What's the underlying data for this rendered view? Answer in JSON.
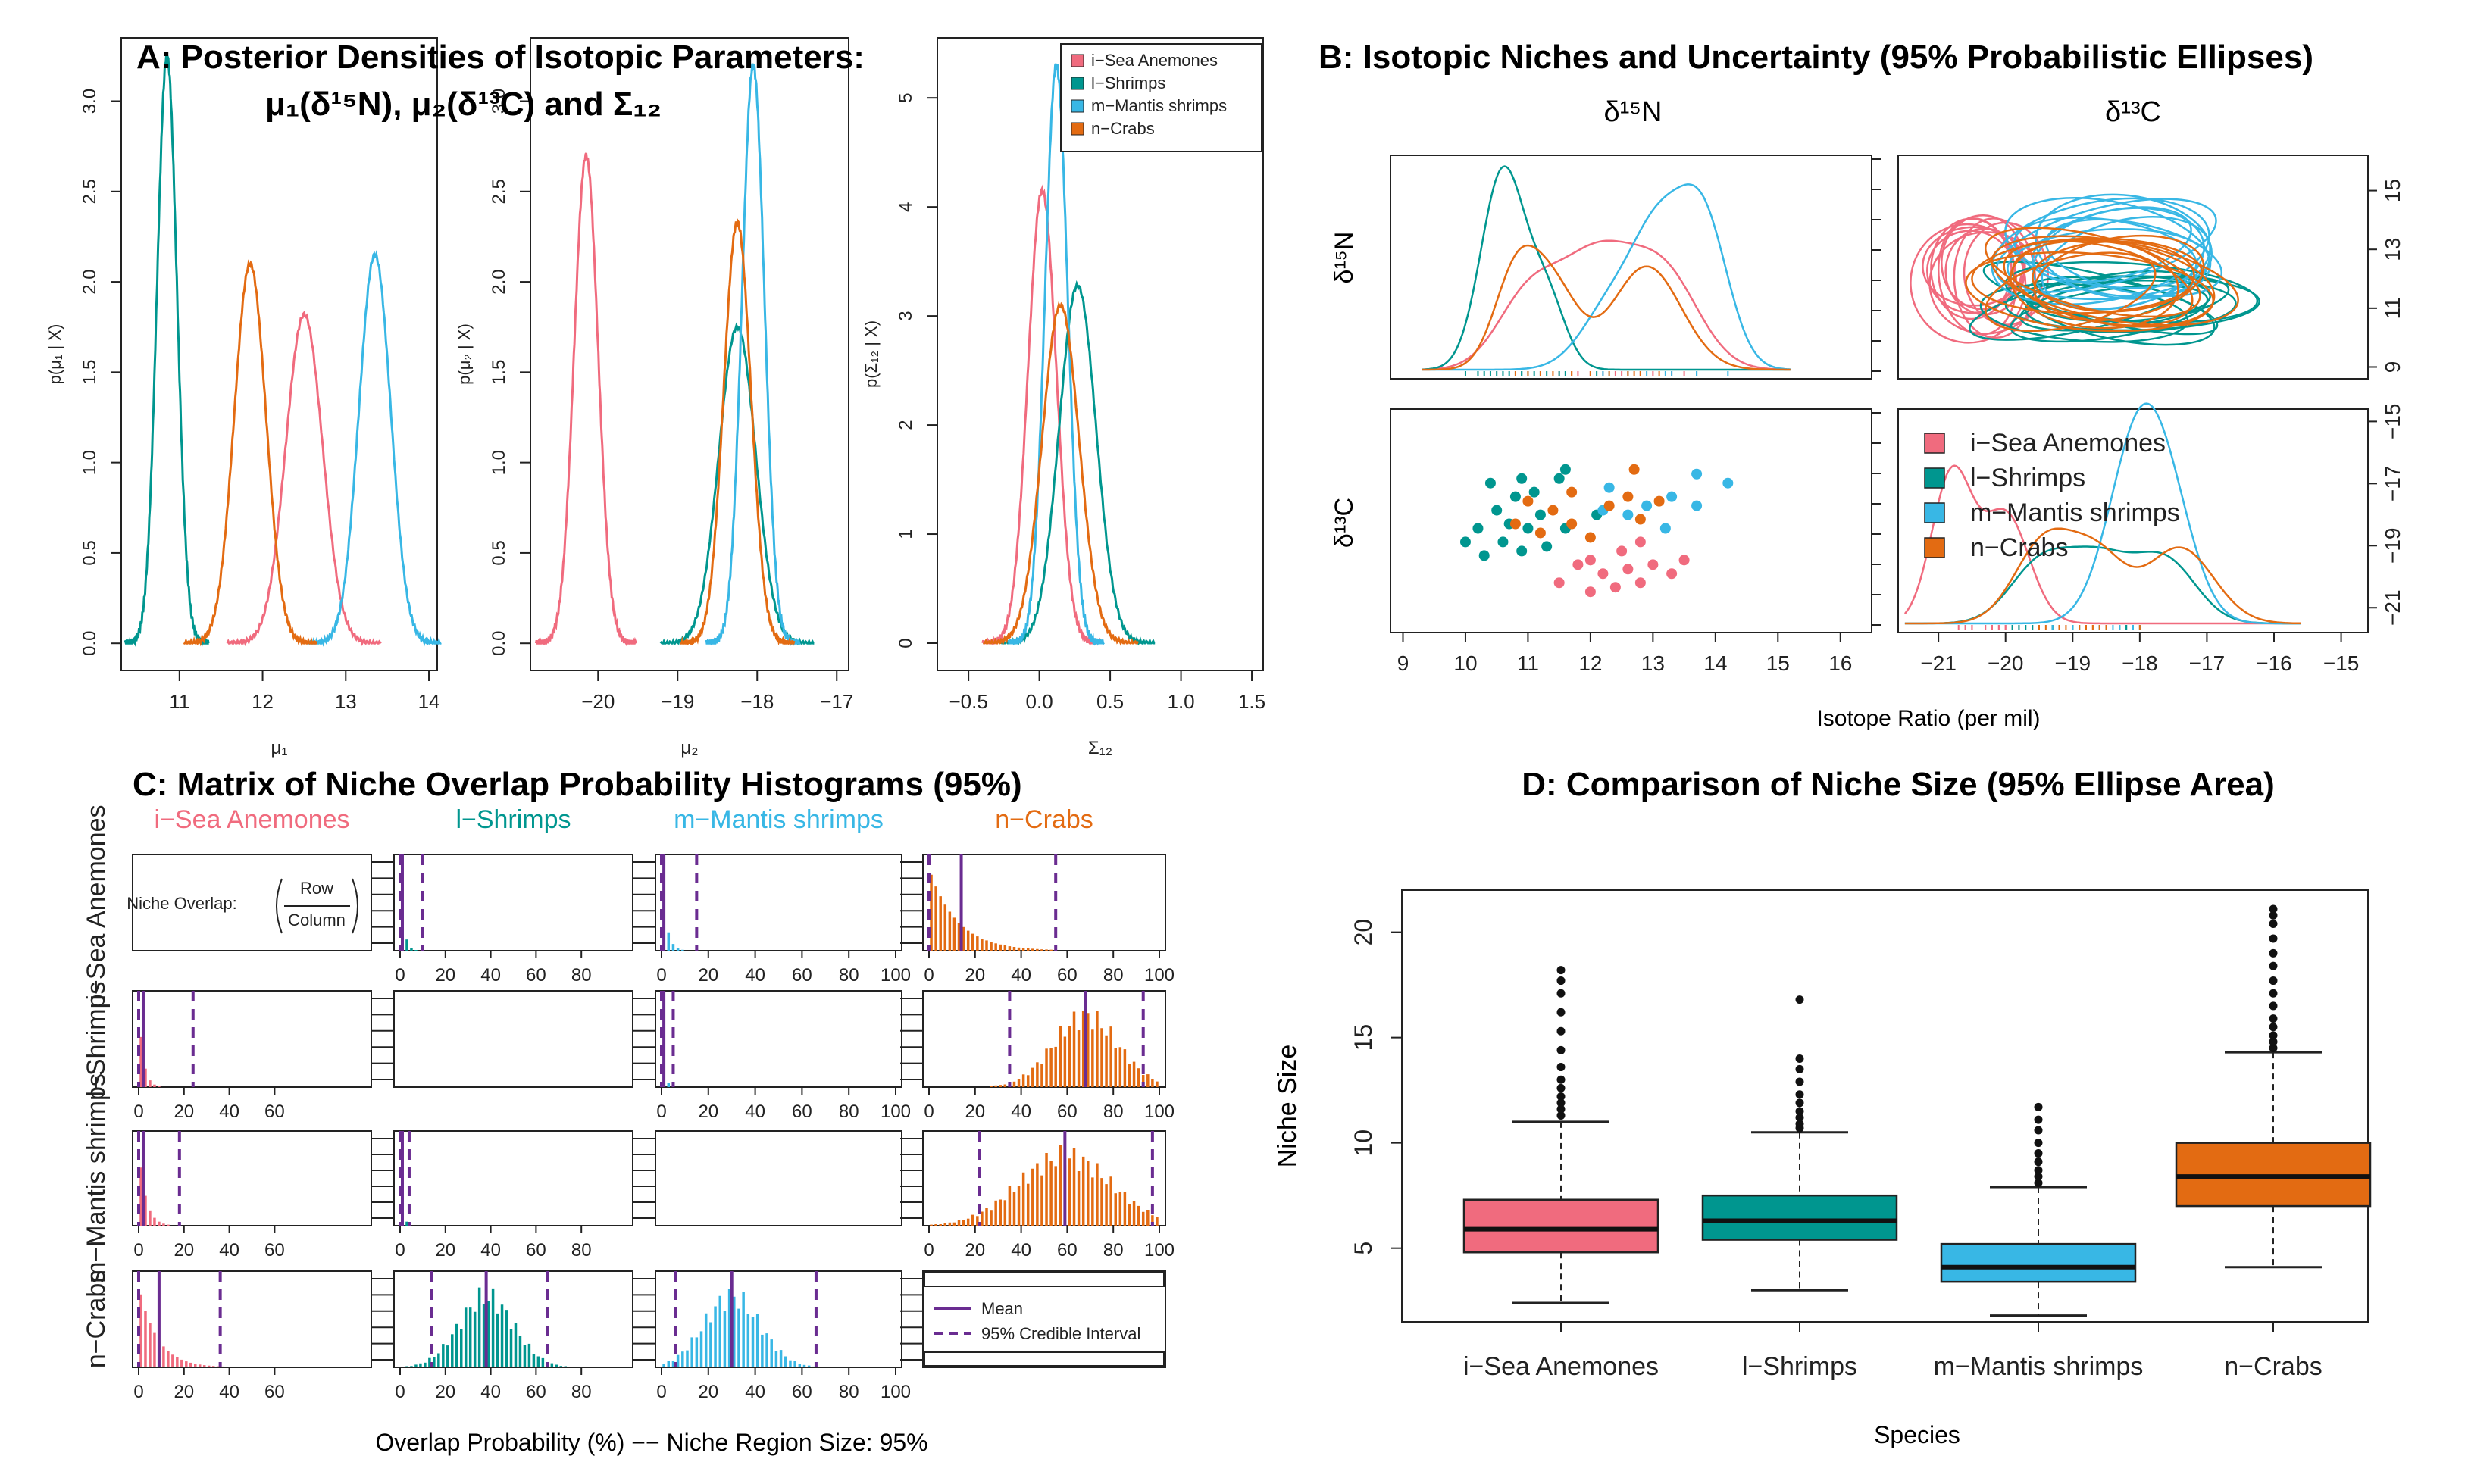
{
  "colors": {
    "i": "#f06b7e",
    "l": "#00968f",
    "m": "#38b7e5",
    "n": "#e36b12",
    "purple": "#6a2c91",
    "axis": "#222222"
  },
  "species": [
    {
      "key": "i",
      "name": "i−Sea Anemones"
    },
    {
      "key": "l",
      "name": "l−Shrimps"
    },
    {
      "key": "m",
      "name": "m−Mantis shrimps"
    },
    {
      "key": "n",
      "name": "n−Crabs"
    }
  ],
  "panelA": {
    "title1": "A: Posterior Densities of Isotopic Parameters:",
    "title2": "μ₁(δ¹⁵N), μ₂(δ¹³C) and Σ₁₂",
    "legend": [
      "i−Sea Anemones",
      "l−Shrimps",
      "m−Mantis shrimps",
      "n−Crabs"
    ]
  },
  "panelB": {
    "title": "B: Isotopic Niches and Uncertainty (95% Probabilistic Ellipses)",
    "col_n": "δ¹⁵N",
    "col_c": "δ¹³C",
    "row_n": "δ¹⁵N",
    "row_c": "δ¹³C",
    "xlabel": "Isotope Ratio (per mil)",
    "legend": [
      "i−Sea Anemones",
      "l−Shrimps",
      "m−Mantis shrimps",
      "n−Crabs"
    ]
  },
  "panelC": {
    "title": "C: Matrix of Niche Overlap Probability Histograms (95%)",
    "col_labels": [
      "i−Sea Anemones",
      "l−Shrimps",
      "m−Mantis shrimps",
      "n−Crabs"
    ],
    "row_labels": [
      "i−Sea Anemones",
      "l−Shrimps",
      "m−Mantis shrimps",
      "n−Crabs"
    ],
    "overlap_label": "Niche Overlap:",
    "row_word": "Row",
    "col_word": "Column",
    "legend_mean": "Mean",
    "legend_ci": "95% Credible Interval",
    "xlabel": "Overlap Probability (%) −− Niche Region Size: 95%"
  },
  "panelD": {
    "title": "D: Comparison of Niche Size (95% Ellipse Area)",
    "ylabel": "Niche Size",
    "xlabel": "Species"
  },
  "chart_data": [
    {
      "id": "A1",
      "type": "line",
      "xlabel": "μ₁",
      "ylabel": "p(μ₁ | X)",
      "xlim": [
        10.3,
        14.1
      ],
      "ylim": [
        -0.15,
        3.35
      ],
      "xticks": [
        "11",
        "12",
        "13",
        "14"
      ],
      "yticks": [
        "0.0",
        "0.5",
        "1.0",
        "1.5",
        "2.0",
        "2.5",
        "3.0"
      ],
      "series": [
        {
          "name": "i−Sea Anemones",
          "mean": 12.5,
          "sd": 0.22,
          "peak": 1.82
        },
        {
          "name": "l−Shrimps",
          "mean": 10.85,
          "sd": 0.12,
          "peak": 3.25
        },
        {
          "name": "m−Mantis shrimps",
          "mean": 13.35,
          "sd": 0.19,
          "peak": 2.15
        },
        {
          "name": "n−Crabs",
          "mean": 11.85,
          "sd": 0.19,
          "peak": 2.1
        }
      ]
    },
    {
      "id": "A2",
      "type": "line",
      "xlabel": "μ₂",
      "ylabel": "p(μ₂ | X)",
      "xlim": [
        -20.85,
        -16.85
      ],
      "ylim": [
        -0.15,
        3.35
      ],
      "xticks": [
        "−20",
        "−19",
        "−18",
        "−17"
      ],
      "yticks": [
        "0.0",
        "0.5",
        "1.0",
        "1.5",
        "2.0",
        "2.5",
        "3.0"
      ],
      "series": [
        {
          "name": "i−Sea Anemones",
          "mean": -20.15,
          "sd": 0.15,
          "peak": 2.7
        },
        {
          "name": "l−Shrimps",
          "mean": -18.25,
          "sd": 0.23,
          "peak": 1.75
        },
        {
          "name": "m−Mantis shrimps",
          "mean": -18.05,
          "sd": 0.14,
          "peak": 3.2
        },
        {
          "name": "n−Crabs",
          "mean": -18.25,
          "sd": 0.17,
          "peak": 2.33
        }
      ]
    },
    {
      "id": "A3",
      "type": "line",
      "xlabel": "Σ₁₂",
      "ylabel": "p(Σ₁₂ | X)",
      "xlim": [
        -0.72,
        1.58
      ],
      "ylim": [
        -0.25,
        5.55
      ],
      "xticks": [
        "−0.5",
        "0.0",
        "0.5",
        "1.0",
        "1.5"
      ],
      "yticks": [
        "0",
        "1",
        "2",
        "3",
        "4",
        "5"
      ],
      "series": [
        {
          "name": "i−Sea Anemones",
          "mean": 0.02,
          "sd": 0.1,
          "peak": 4.15
        },
        {
          "name": "l−Shrimps",
          "mean": 0.27,
          "sd": 0.13,
          "peak": 3.28
        },
        {
          "name": "m−Mantis shrimps",
          "mean": 0.12,
          "sd": 0.08,
          "peak": 5.3
        },
        {
          "name": "n−Crabs",
          "mean": 0.15,
          "sd": 0.13,
          "peak": 3.1
        }
      ]
    },
    {
      "id": "B",
      "type": "scatter",
      "xlim": [
        8.8,
        16.5
      ],
      "xticks": [
        "9",
        "10",
        "11",
        "12",
        "13",
        "14",
        "15",
        "16"
      ],
      "clim": [
        -21.6,
        -14.6
      ],
      "cticks": [
        "−21",
        "−20",
        "−19",
        "−18",
        "−17",
        "−16",
        "−15"
      ],
      "nticks_right": [
        "9",
        "11",
        "13",
        "15"
      ],
      "cticks_right": [
        "−21",
        "−19",
        "−17",
        "−15"
      ],
      "points": {
        "i": [
          [
            11.5,
            -20.5
          ],
          [
            11.8,
            -20.1
          ],
          [
            12.0,
            -20.7
          ],
          [
            12.2,
            -20.3
          ],
          [
            12.4,
            -20.6
          ],
          [
            12.6,
            -20.2
          ],
          [
            12.8,
            -20.5
          ],
          [
            13.0,
            -20.1
          ],
          [
            13.3,
            -20.3
          ],
          [
            13.5,
            -20.0
          ],
          [
            12.0,
            -20.0
          ],
          [
            12.5,
            -19.8
          ],
          [
            12.8,
            -19.6
          ]
        ],
        "l": [
          [
            10.0,
            -19.6
          ],
          [
            10.2,
            -19.3
          ],
          [
            10.3,
            -19.9
          ],
          [
            10.5,
            -18.9
          ],
          [
            10.6,
            -19.6
          ],
          [
            10.7,
            -19.2
          ],
          [
            10.8,
            -18.6
          ],
          [
            10.9,
            -19.8
          ],
          [
            11.0,
            -19.3
          ],
          [
            11.1,
            -18.5
          ],
          [
            11.2,
            -19.0
          ],
          [
            11.3,
            -19.7
          ],
          [
            11.5,
            -18.2
          ],
          [
            11.6,
            -18.0
          ],
          [
            10.4,
            -18.3
          ],
          [
            10.9,
            -18.2
          ],
          [
            12.1,
            -19.0
          ],
          [
            11.6,
            -19.3
          ]
        ],
        "m": [
          [
            12.2,
            -18.9
          ],
          [
            12.6,
            -19.0
          ],
          [
            12.9,
            -18.8
          ],
          [
            13.3,
            -18.6
          ],
          [
            13.7,
            -18.8
          ],
          [
            13.7,
            -18.1
          ],
          [
            14.2,
            -18.3
          ],
          [
            13.2,
            -19.3
          ],
          [
            12.3,
            -18.4
          ]
        ],
        "n": [
          [
            10.8,
            -19.2
          ],
          [
            11.0,
            -18.7
          ],
          [
            11.2,
            -19.4
          ],
          [
            11.4,
            -18.9
          ],
          [
            11.7,
            -19.2
          ],
          [
            12.0,
            -19.5
          ],
          [
            12.6,
            -18.6
          ],
          [
            12.7,
            -18.0
          ],
          [
            12.8,
            -19.1
          ],
          [
            13.1,
            -18.7
          ],
          [
            11.7,
            -18.5
          ],
          [
            12.3,
            -18.8
          ]
        ]
      },
      "kde_n": [
        {
          "name": "i−Sea Anemones",
          "comps": [
            [
              11.0,
              0.5,
              0.35
            ],
            [
              12.1,
              0.6,
              0.55
            ],
            [
              13.2,
              0.55,
              0.45
            ]
          ]
        },
        {
          "name": "l−Shrimps",
          "comps": [
            [
              10.6,
              0.35,
              1.0
            ],
            [
              11.3,
              0.3,
              0.35
            ]
          ]
        },
        {
          "name": "m−Mantis shrimps",
          "comps": [
            [
              12.4,
              0.5,
              0.35
            ],
            [
              13.1,
              0.4,
              0.55
            ],
            [
              13.8,
              0.4,
              0.75
            ]
          ]
        },
        {
          "name": "n−Crabs",
          "comps": [
            [
              10.8,
              0.35,
              0.45
            ],
            [
              11.4,
              0.4,
              0.4
            ],
            [
              12.9,
              0.55,
              0.52
            ]
          ]
        }
      ],
      "kde_c": [
        {
          "name": "i−Sea Anemones",
          "comps": [
            [
              -20.8,
              0.3,
              0.75
            ],
            [
              -20.0,
              0.35,
              0.55
            ]
          ]
        },
        {
          "name": "l−Shrimps",
          "comps": [
            [
              -19.5,
              0.45,
              0.28
            ],
            [
              -18.6,
              0.5,
              0.32
            ],
            [
              -17.6,
              0.45,
              0.3
            ]
          ]
        },
        {
          "name": "m−Mantis shrimps",
          "comps": [
            [
              -18.0,
              0.45,
              0.95
            ],
            [
              -17.5,
              0.4,
              0.3
            ]
          ]
        },
        {
          "name": "n−Crabs",
          "comps": [
            [
              -19.4,
              0.45,
              0.42
            ],
            [
              -18.6,
              0.4,
              0.3
            ],
            [
              -17.4,
              0.5,
              0.38
            ]
          ]
        }
      ],
      "ellipses": {
        "i": {
          "cx": -20.3,
          "cy": 12.2,
          "rx": 0.75,
          "ry": 1.7
        },
        "l": {
          "cx": -18.5,
          "cy": 11.2,
          "rx": 1.7,
          "ry": 0.9
        },
        "m": {
          "cx": -18.2,
          "cy": 12.9,
          "rx": 1.5,
          "ry": 1.5
        },
        "n": {
          "cx": -18.7,
          "cy": 11.9,
          "rx": 1.6,
          "ry": 1.3
        }
      }
    },
    {
      "id": "C",
      "type": "bar",
      "xticks_full": [
        "0",
        "20",
        "40",
        "60",
        "80",
        "100"
      ],
      "xticks_short": [
        "0",
        "20",
        "40",
        "60"
      ],
      "xticks_80": [
        "0",
        "20",
        "40",
        "60",
        "80"
      ],
      "cells": [
        {
          "r": 0,
          "c": 1,
          "color": "l",
          "mean": 1,
          "lo": 0,
          "hi": 10,
          "shape": "decay",
          "scale": 1.5
        },
        {
          "r": 0,
          "c": 2,
          "color": "m",
          "mean": 1,
          "lo": 0,
          "hi": 15,
          "shape": "decay",
          "scale": 2
        },
        {
          "r": 0,
          "c": 3,
          "color": "n",
          "mean": 14,
          "lo": 0,
          "hi": 55,
          "shape": "decay",
          "scale": 12
        },
        {
          "r": 1,
          "c": 0,
          "color": "i",
          "mean": 2,
          "lo": 0,
          "hi": 24,
          "shape": "decay",
          "scale": 2
        },
        {
          "r": 1,
          "c": 2,
          "color": "m",
          "mean": 1,
          "lo": 0,
          "hi": 5,
          "shape": "decay",
          "scale": 1
        },
        {
          "r": 1,
          "c": 3,
          "color": "n",
          "mean": 68,
          "lo": 35,
          "hi": 93,
          "shape": "normal",
          "sd": 14
        },
        {
          "r": 2,
          "c": 0,
          "color": "i",
          "mean": 2,
          "lo": 0,
          "hi": 18,
          "shape": "decay",
          "scale": 3
        },
        {
          "r": 2,
          "c": 1,
          "color": "l",
          "mean": 1,
          "lo": 0,
          "hi": 4,
          "shape": "decay",
          "scale": 1
        },
        {
          "r": 2,
          "c": 3,
          "color": "n",
          "mean": 59,
          "lo": 22,
          "hi": 97,
          "shape": "normal",
          "sd": 20
        },
        {
          "r": 3,
          "c": 0,
          "color": "i",
          "mean": 9,
          "lo": 0,
          "hi": 36,
          "shape": "decay",
          "scale": 8
        },
        {
          "r": 3,
          "c": 1,
          "color": "l",
          "mean": 38,
          "lo": 14,
          "hi": 65,
          "shape": "normal",
          "sd": 12
        },
        {
          "r": 3,
          "c": 2,
          "color": "m",
          "mean": 30,
          "lo": 6,
          "hi": 66,
          "shape": "normal",
          "sd": 12
        }
      ]
    },
    {
      "id": "D",
      "type": "box",
      "categories": [
        "i−Sea Anemones",
        "l−Shrimps",
        "m−Mantis shrimps",
        "n−Crabs"
      ],
      "ylim": [
        1.5,
        22
      ],
      "yticks": [
        "5",
        "10",
        "15",
        "20"
      ],
      "boxes": [
        {
          "color": "i",
          "q1": 4.8,
          "median": 5.9,
          "q3": 7.3,
          "lo": 2.4,
          "hi": 11.0,
          "outliers": [
            11.3,
            11.6,
            11.9,
            12.2,
            12.6,
            13.0,
            13.6,
            14.4,
            15.3,
            16.2,
            17.1,
            17.7,
            18.2
          ]
        },
        {
          "color": "l",
          "q1": 5.4,
          "median": 6.3,
          "q3": 7.5,
          "lo": 3.0,
          "hi": 10.5,
          "outliers": [
            10.7,
            10.9,
            11.2,
            11.5,
            11.9,
            12.3,
            12.9,
            13.5,
            14.0,
            16.8
          ]
        },
        {
          "color": "m",
          "q1": 3.4,
          "median": 4.1,
          "q3": 5.2,
          "lo": 1.8,
          "hi": 7.9,
          "outliers": [
            8.1,
            8.4,
            8.7,
            9.1,
            9.5,
            10.0,
            10.6,
            11.1,
            11.7
          ]
        },
        {
          "color": "n",
          "q1": 7.0,
          "median": 8.4,
          "q3": 10.0,
          "lo": 4.1,
          "hi": 14.3,
          "outliers": [
            14.5,
            14.8,
            15.1,
            15.5,
            15.9,
            16.5,
            17.1,
            17.7,
            18.4,
            19.0,
            19.7,
            20.4,
            20.8,
            21.1
          ]
        }
      ]
    }
  ]
}
